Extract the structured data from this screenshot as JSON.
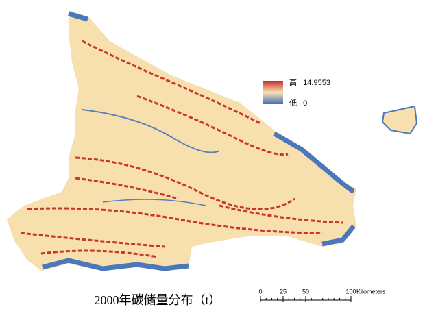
{
  "map": {
    "title": "2000年碳储量分布（t）",
    "legend": {
      "high": "高 : 14.9553",
      "low": "低 : 0"
    },
    "scale_bar": {
      "ticks": [
        0,
        25,
        50,
        100
      ],
      "unit": "Kilometers"
    }
  }
}
